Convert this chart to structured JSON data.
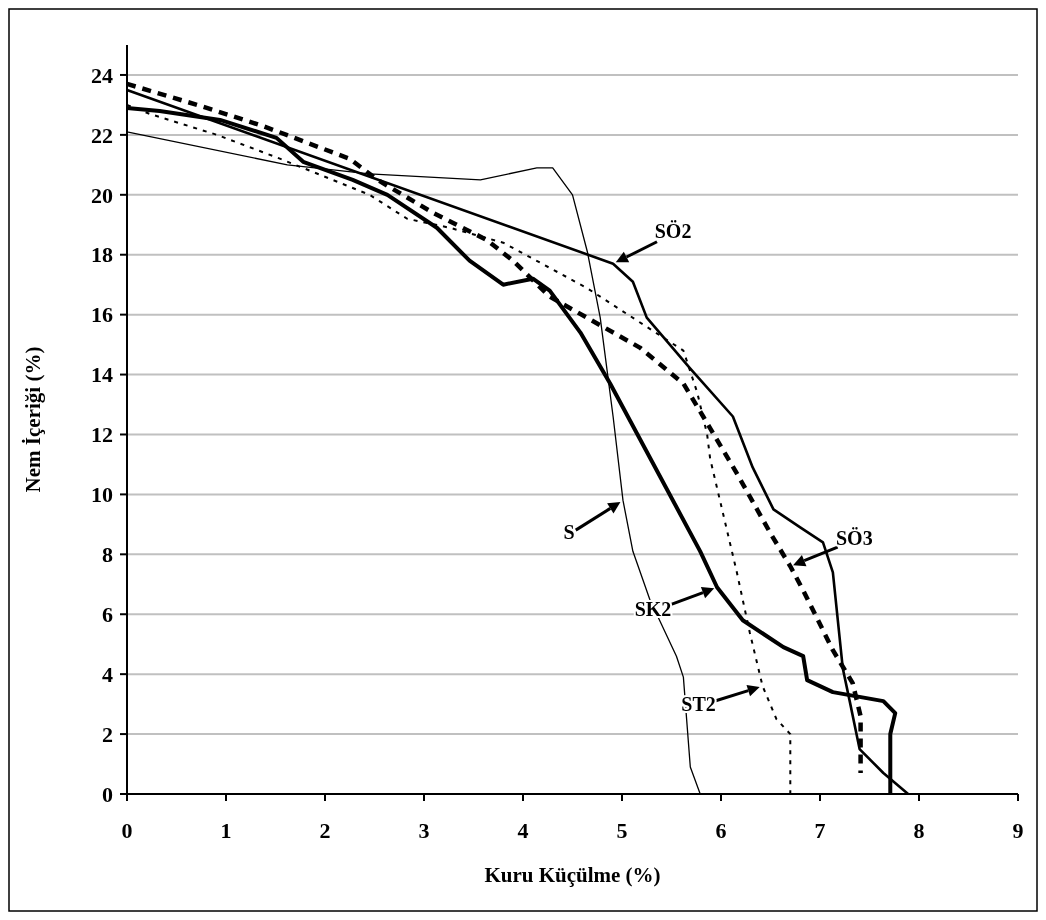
{
  "chart_data": {
    "type": "line",
    "xlabel": "Kuru Küçülme (%)",
    "ylabel": "Nem İçeriği (%)",
    "xlim": [
      0,
      9
    ],
    "ylim": [
      0,
      25
    ],
    "xticks": [
      0,
      1,
      2,
      3,
      4,
      5,
      6,
      7,
      8,
      9
    ],
    "yticks": [
      0,
      2,
      4,
      6,
      8,
      10,
      12,
      14,
      16,
      18,
      20,
      22,
      24
    ],
    "grid": "y",
    "annotations": [
      {
        "text": "S",
        "x": 5.01,
        "y": 9.8
      },
      {
        "text": "SK2",
        "x": 5.96,
        "y": 6.9
      },
      {
        "text": "ST2",
        "x": 6.42,
        "y": 3.6
      },
      {
        "text": "SÖ2",
        "x": 4.91,
        "y": 17.7
      },
      {
        "text": "SÖ3",
        "x": 6.7,
        "y": 7.6
      }
    ],
    "series": [
      {
        "color": "#000000",
        "line_style": "solid",
        "x": [
          0,
          1.62,
          2.45,
          3.57,
          4.14,
          4.3,
          4.5,
          4.65,
          4.78,
          4.91,
          5.01,
          5.11,
          5.28,
          5.55,
          5.62,
          5.69,
          5.79
        ],
        "values": [
          22.1,
          21.0,
          20.7,
          20.5,
          20.9,
          20.9,
          20.0,
          18.1,
          15.9,
          12.6,
          9.8,
          8.1,
          6.5,
          4.6,
          3.9,
          0.9,
          0
        ]
      },
      {
        "color": "#000000",
        "line_style": "solid",
        "x": [
          0,
          0.33,
          0.94,
          1.51,
          1.78,
          2.28,
          2.63,
          3.13,
          3.46,
          3.8,
          4.1,
          4.27,
          4.58,
          4.88,
          5.79,
          5.96,
          6.22,
          6.63,
          6.83,
          6.87,
          7.13,
          7.64,
          7.76,
          7.71,
          7.71
        ],
        "values": [
          22.9,
          22.8,
          22.5,
          21.9,
          21.1,
          20.5,
          20.0,
          18.9,
          17.8,
          17.0,
          17.2,
          16.8,
          15.4,
          13.7,
          8.1,
          6.9,
          5.8,
          4.9,
          4.6,
          3.8,
          3.4,
          3.1,
          2.7,
          2.0,
          0
        ]
      },
      {
        "color": "#000000",
        "line_style": "dotted",
        "x": [
          0,
          0.23,
          0.91,
          1.55,
          2.45,
          2.83,
          3.26,
          3.8,
          4.64,
          5.62,
          5.76,
          5.86,
          5.89,
          6.16,
          6.29,
          6.42,
          6.56,
          6.7,
          6.7
        ],
        "values": [
          23.0,
          22.7,
          22.0,
          21.2,
          20.0,
          19.2,
          18.9,
          18.4,
          16.9,
          14.8,
          13.4,
          12.0,
          11.2,
          7.4,
          5.4,
          3.6,
          2.5,
          2.0,
          0
        ]
      },
      {
        "color": "#000000",
        "line_style": "solid",
        "x": [
          0,
          4.91,
          5.11,
          5.25,
          5.69,
          6.12,
          6.32,
          6.53,
          6.8,
          7.03,
          7.13,
          7.23,
          7.3,
          7.4,
          7.64,
          7.89
        ],
        "values": [
          23.5,
          17.7,
          17.1,
          15.9,
          14.2,
          12.6,
          10.9,
          9.5,
          8.9,
          8.4,
          7.4,
          4.2,
          3.1,
          1.5,
          0.7,
          0
        ]
      },
      {
        "color": "#000000",
        "line_style": "dashed",
        "x": [
          0,
          0.71,
          1.37,
          2.25,
          2.53,
          3.09,
          3.63,
          3.9,
          4.27,
          5.18,
          5.62,
          5.82,
          6.16,
          6.5,
          6.7,
          6.83,
          7.13,
          7.33,
          7.41,
          7.41
        ],
        "values": [
          23.7,
          23.0,
          22.3,
          21.2,
          20.5,
          19.4,
          18.5,
          17.8,
          16.6,
          14.9,
          13.7,
          12.6,
          10.7,
          8.7,
          7.6,
          6.8,
          4.8,
          3.7,
          2.6,
          0.7
        ]
      }
    ]
  }
}
